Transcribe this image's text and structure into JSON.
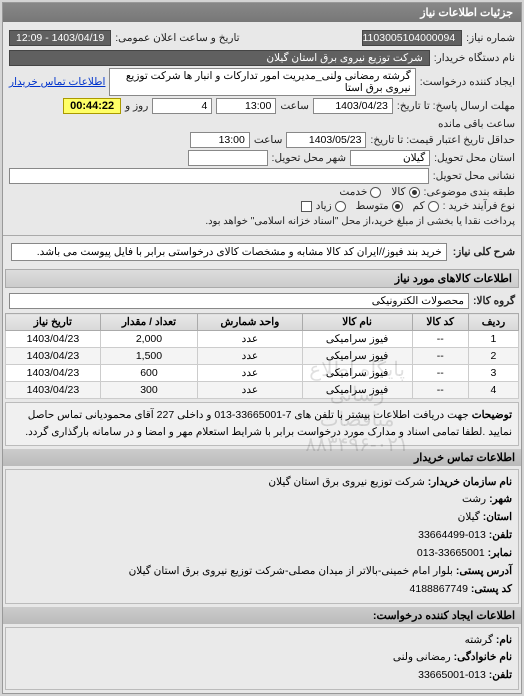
{
  "panel_title": "جزئیات اطلاعات نیاز",
  "top": {
    "need_no_label": "شماره نیاز:",
    "need_no": "1103005104000094",
    "date_label": "تاریخ و ساعت اعلان عمومی:",
    "date_value": "1403/04/19 - 12:09",
    "buyer_label": "نام دستگاه خریدار:",
    "buyer": "شرکت توزیع نیروی برق استان گیلان",
    "requester_label": "ایجاد کننده درخواست:",
    "requester": "گرشته رمضانی ولنی_مدیریت امور تدارکات و انبار ها شرکت توزیع نیروی برق استا",
    "buyer_contact_link": "اطلاعات تماس خریدار"
  },
  "deadlines": {
    "send_label": "مهلت ارسال پاسخ: تا تاریخ:",
    "send_date": "1403/04/23",
    "hour_label": "ساعت",
    "send_hour": "13:00",
    "days_left": "4",
    "days_left_suffix": "روز و",
    "timer": "00:44:22",
    "timer_suffix": "ساعت باقی مانده",
    "credit_label": "حداقل تاریخ اعتبار قیمت: تا تاریخ:",
    "credit_date": "1403/05/23",
    "credit_hour": "13:00",
    "delivery_state_label": "استان محل تحویل:",
    "delivery_state": "گیلان",
    "delivery_city_label": "شهر محل تحویل:",
    "delivery_city": "",
    "address_label": "نشانی محل تحویل:",
    "address": ""
  },
  "budget": {
    "label": "طبقه بندی موضوعی:",
    "opt_goods": "کالا",
    "opt_service": "خدمت",
    "pay_label": "نوع فرآیند خرید :",
    "opt_low": "کم",
    "opt_mid": "متوسط",
    "opt_high": "زیاد",
    "cash_label": "پرداخت نقدا یا بخشی از مبلغ خرید،از محل \"اسناد خزانه اسلامی\" خواهد بود.",
    "checkbox_checked": false
  },
  "desc": {
    "label": "شرح کلی نیاز:",
    "text": "خرید بند فیوز//ایران کد کالا مشابه و مشخصات کالای درخواستی برابر با فایل پیوست می باشد."
  },
  "goods_header": "اطلاعات کالاهای مورد نیاز",
  "goods_group": {
    "label": "گروه کالا:",
    "value": "محصولات الکترونیکی"
  },
  "table": {
    "columns": [
      "ردیف",
      "کد کالا",
      "نام کالا",
      "واحد شمارش",
      "تعداد / مقدار",
      "تاریخ نیاز"
    ],
    "rows": [
      [
        "1",
        "--",
        "فیوز سرامیکی",
        "عدد",
        "2,000",
        "1403/04/23"
      ],
      [
        "2",
        "--",
        "فیوز سرامیکی",
        "عدد",
        "1,500",
        "1403/04/23"
      ],
      [
        "3",
        "--",
        "فیوز سرامیکی",
        "عدد",
        "600",
        "1403/04/23"
      ],
      [
        "4",
        "--",
        "فیوز سرامیکی",
        "عدد",
        "300",
        "1403/04/23"
      ]
    ],
    "watermark": "پایگاه اطلاع رسانی مناقصات ۰۲۱-۸۸۳۴۹۶"
  },
  "note": {
    "label": "توضیحات",
    "text": "جهت دریافت اطلاعات بیشتر با تلفن های 7-33665001-013 و داخلی 227 آقای محمودیانی تماس حاصل نمایید .لطفا تمامی اسناد و مدارک مورد درخواست برابر با شرایط استعلام مهر و امضا و در سامانه بارگذاری گردد."
  },
  "contact_header": "اطلاعات تماس خریدار",
  "contact": {
    "org_label": "نام سازمان خریدار:",
    "org": "شرکت توزیع نیروی برق استان گیلان",
    "city_label": "شهر:",
    "city": "رشت",
    "state_label": "استان:",
    "state": "گیلان",
    "phone_label": "تلفن:",
    "phone": "013-33664499",
    "fax_label": "نمابر:",
    "fax": "33665001-013",
    "address_label": "آدرس پستی:",
    "address": "بلوار امام خمینی-بالاتر از میدان مصلی-شرکت توزیع نیروی برق استان گیلان",
    "postal_label": "کد پستی:",
    "postal": "4188867749"
  },
  "creator_header": "اطلاعات ایجاد کننده درخواست:",
  "creator": {
    "name_label": "نام:",
    "name": "گرشته",
    "family_label": "نام خانوادگی:",
    "family": "رمضانی ولنی",
    "phone_label": "تلفن:",
    "phone": "013-33665001"
  },
  "colors": {
    "header_bg": "#7d7d7d",
    "panel_bg": "#e8e8e8",
    "field_bg": "#ffffff",
    "dark_field": "#606060",
    "timer_bg": "#ffff66",
    "link": "#0033cc"
  }
}
